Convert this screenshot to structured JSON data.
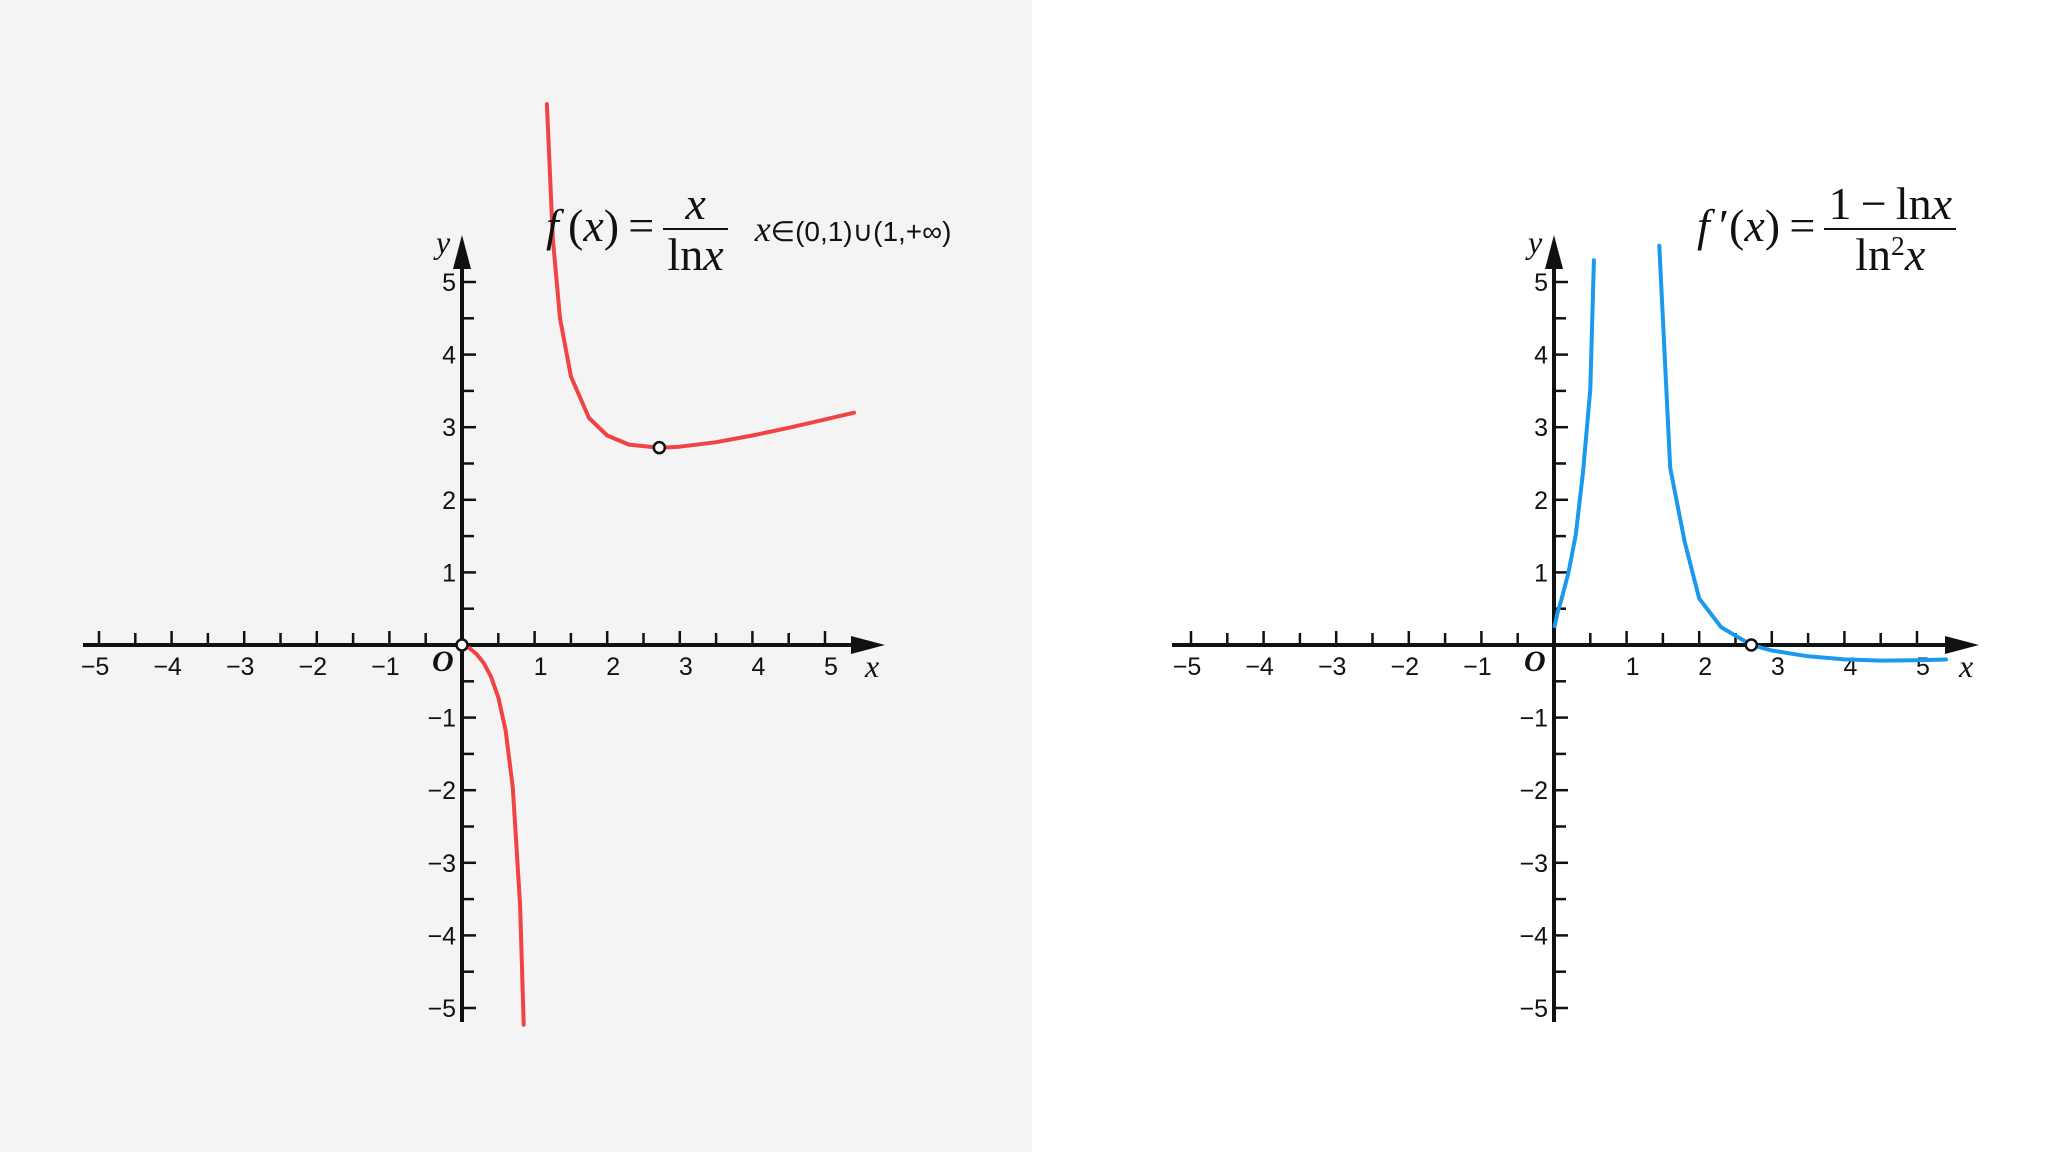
{
  "chart_data": [
    {
      "type": "line",
      "title": "f(x) = x / ln x",
      "domain_note": "x∈(0,1)∪(1,+∞)",
      "xlabel": "x",
      "ylabel": "y",
      "origin_label": "O",
      "xlim": [
        -5.3,
        5.7
      ],
      "ylim": [
        -5.3,
        5.6
      ],
      "x_ticks": [
        -5,
        -4,
        -3,
        -2,
        -1,
        1,
        2,
        3,
        4,
        5
      ],
      "x_tick_labels": [
        "−5",
        "−4",
        "−3",
        "−2",
        "−1",
        "1",
        "2",
        "3",
        "4",
        "5"
      ],
      "y_ticks": [
        -5,
        -4,
        -3,
        -2,
        -1,
        1,
        2,
        3,
        4,
        5
      ],
      "y_tick_labels": [
        "−5",
        "−4",
        "−3",
        "−2",
        "−1",
        "1",
        "2",
        "3",
        "4",
        "5"
      ],
      "grid": false,
      "series": [
        {
          "color": "#f04444",
          "segments": [
            [
              [
                0.02,
                -0.005
              ],
              [
                0.1,
                -0.043
              ],
              [
                0.2,
                -0.124
              ],
              [
                0.3,
                -0.249
              ],
              [
                0.4,
                -0.437
              ],
              [
                0.5,
                -0.721
              ],
              [
                0.6,
                -1.175
              ],
              [
                0.7,
                -1.963
              ],
              [
                0.8,
                -3.585
              ],
              [
                0.85,
                -5.23
              ]
            ],
            [
              [
                1.17,
                7.45
              ],
              [
                1.25,
                5.6
              ],
              [
                1.35,
                4.5
              ],
              [
                1.5,
                3.7
              ],
              [
                1.75,
                3.127
              ],
              [
                2.0,
                2.885
              ],
              [
                2.3,
                2.761
              ],
              [
                2.718,
                2.718
              ],
              [
                3.0,
                2.731
              ],
              [
                3.5,
                2.794
              ],
              [
                4.0,
                2.885
              ],
              [
                4.5,
                2.992
              ],
              [
                5.0,
                3.107
              ],
              [
                5.4,
                3.2
              ]
            ]
          ]
        }
      ],
      "points": [
        {
          "x": 0,
          "y": 0,
          "label": ""
        },
        {
          "x": 2.718,
          "y": 2.718,
          "label": ""
        }
      ]
    },
    {
      "type": "line",
      "title": "f ′(x) = (1 − ln x) / ln²x",
      "xlabel": "x",
      "ylabel": "y",
      "origin_label": "O",
      "xlim": [
        -5.3,
        5.7
      ],
      "ylim": [
        -5.3,
        5.6
      ],
      "x_ticks": [
        -5,
        -4,
        -3,
        -2,
        -1,
        1,
        2,
        3,
        4,
        5
      ],
      "x_tick_labels": [
        "−5",
        "−4",
        "−3",
        "−2",
        "−1",
        "1",
        "2",
        "3",
        "4",
        "5"
      ],
      "y_ticks": [
        -5,
        -4,
        -3,
        -2,
        -1,
        1,
        2,
        3,
        4,
        5
      ],
      "y_tick_labels": [
        "−5",
        "−4",
        "−3",
        "−2",
        "−1",
        "1",
        "2",
        "3",
        "4",
        "5"
      ],
      "grid": false,
      "series": [
        {
          "color": "#1a99ee",
          "segments": [
            [
              [
                0.01,
                0.26
              ],
              [
                0.05,
                0.45
              ],
              [
                0.1,
                0.62
              ],
              [
                0.2,
                1.0
              ],
              [
                0.3,
                1.52
              ],
              [
                0.4,
                2.38
              ],
              [
                0.5,
                3.52
              ],
              [
                0.55,
                5.3
              ]
            ],
            [
              [
                1.45,
                5.5
              ],
              [
                1.6,
                2.44
              ],
              [
                1.8,
                1.42
              ],
              [
                2.0,
                0.64
              ],
              [
                2.3,
                0.247
              ],
              [
                2.718,
                0.0
              ],
              [
                3.0,
                -0.076
              ],
              [
                3.5,
                -0.155
              ],
              [
                4.0,
                -0.198
              ],
              [
                4.5,
                -0.215
              ],
              [
                5.0,
                -0.21
              ],
              [
                5.4,
                -0.2
              ]
            ]
          ]
        }
      ],
      "points": [
        {
          "x": 2.718,
          "y": 0,
          "label": ""
        }
      ]
    }
  ]
}
